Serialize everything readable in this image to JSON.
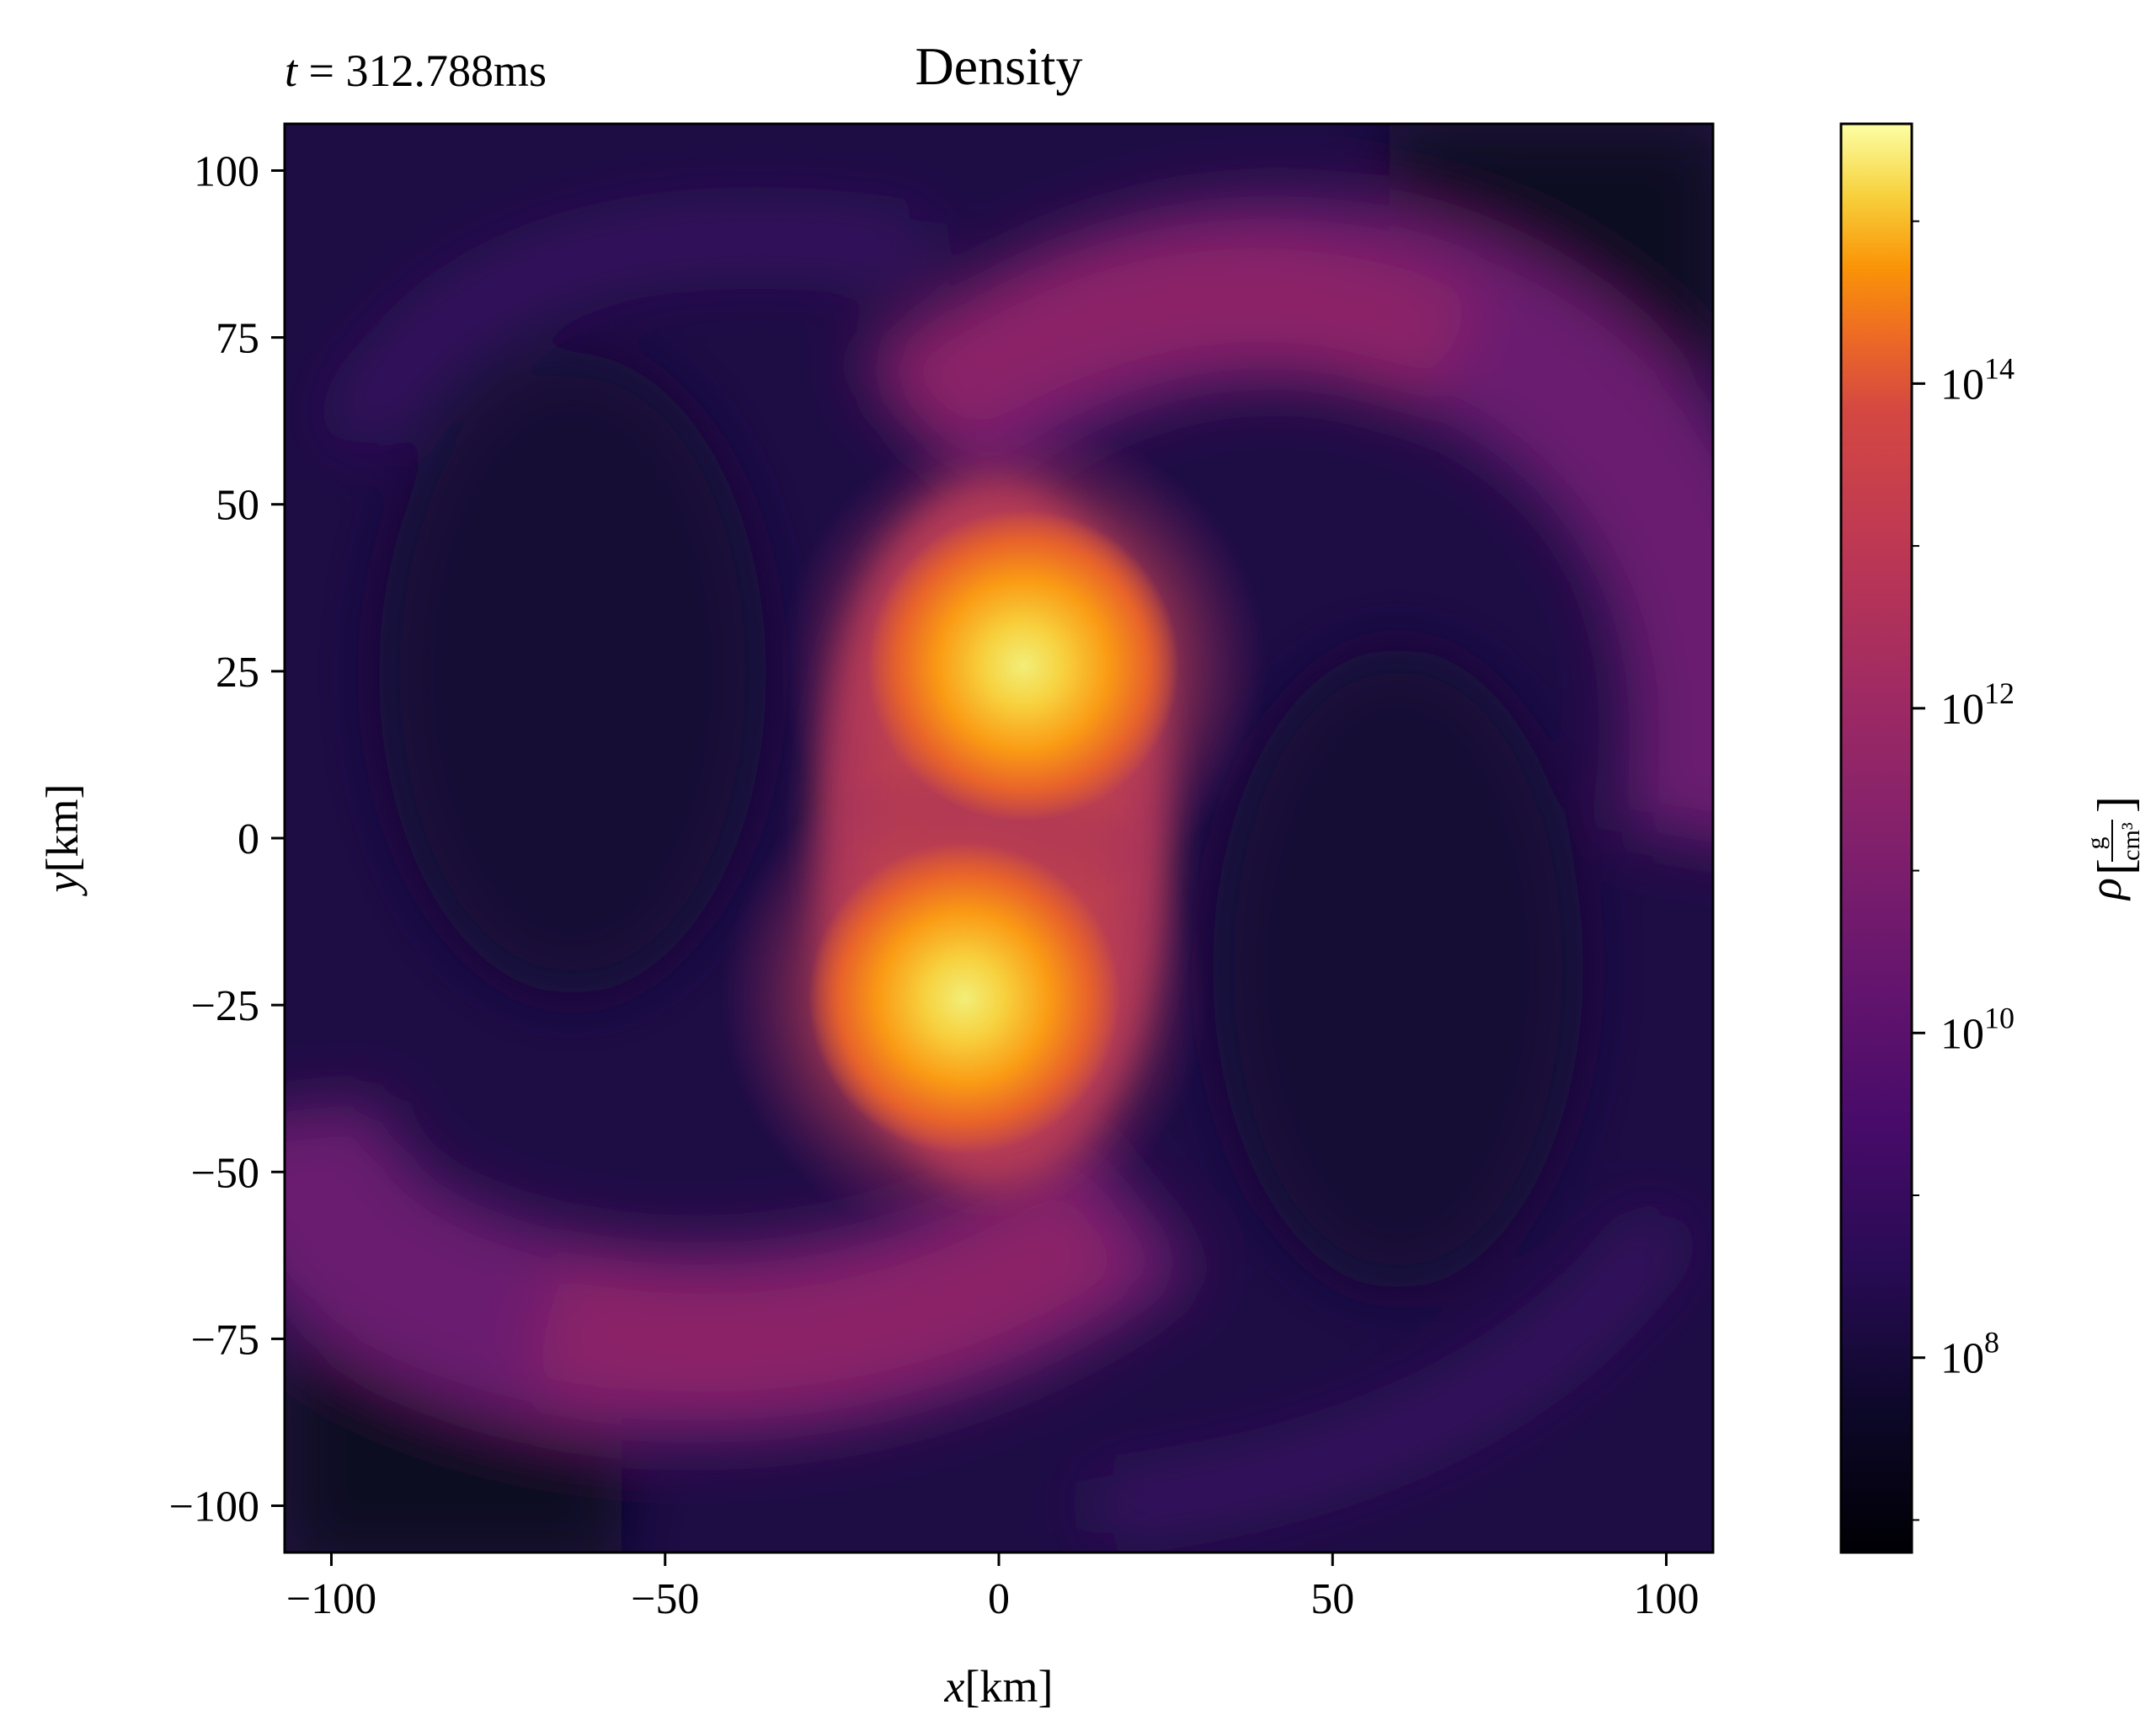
{
  "chart_data": {
    "type": "heatmap",
    "title": "Density",
    "time_label": "t = 312.788ms",
    "time_label_var": "t",
    "time_label_value": " = 312.788ms",
    "xlabel_var": "x",
    "xlabel_unit": "[km]",
    "ylabel_var": "y",
    "ylabel_unit": "[km]",
    "xlim": [
      -107,
      107
    ],
    "ylim": [
      -107,
      107
    ],
    "x_ticks": [
      -100,
      -50,
      0,
      50,
      100
    ],
    "y_ticks": [
      -100,
      -75,
      -50,
      -25,
      0,
      25,
      50,
      75,
      100
    ],
    "x_tick_labels": [
      "−100",
      "−50",
      "0",
      "50",
      "100"
    ],
    "y_tick_labels": [
      "−100",
      "−75",
      "−50",
      "−25",
      "0",
      "25",
      "50",
      "75",
      "100"
    ],
    "colorbar": {
      "label_var": "ρ",
      "label_unit_num": "g",
      "label_unit_den": "cm³",
      "scale": "log",
      "range_log10": [
        6.8,
        15.6
      ],
      "ticks_log10": [
        8,
        10,
        12,
        14
      ],
      "tick_labels": [
        {
          "base": "10",
          "exp": "8"
        },
        {
          "base": "10",
          "exp": "10"
        },
        {
          "base": "10",
          "exp": "12"
        },
        {
          "base": "10",
          "exp": "14"
        }
      ],
      "colormap": "inferno"
    },
    "features": [
      {
        "name": "upper core",
        "x": 3,
        "y": 26,
        "peak_log10_density": 14.9
      },
      {
        "name": "lower core",
        "x": -4,
        "y": -26,
        "peak_log10_density": 14.9
      }
    ],
    "background_log10_density": 7.5,
    "grid": false
  }
}
